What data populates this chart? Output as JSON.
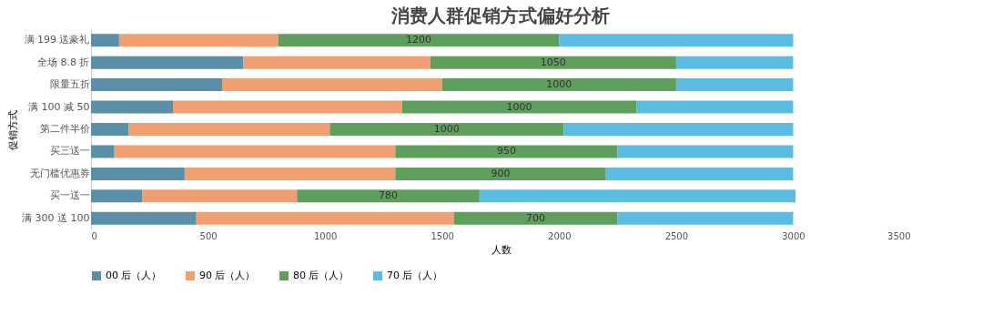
{
  "chart_data": {
    "type": "bar",
    "orientation": "horizontal",
    "stacked": true,
    "title": "消费人群促销方式偏好分析",
    "xlabel": "人数",
    "ylabel": "促销方式",
    "categories": [
      "满 199 送豪礼",
      "全场 8.8 折",
      "限量五折",
      "满 100 减 50",
      "第二件半价",
      "买三送一",
      "无门槛优惠券",
      "买一送一",
      "满 300 送 100"
    ],
    "series": [
      {
        "name": "00 后（人）",
        "color": "#5b8fa8",
        "values": [
          120,
          650,
          560,
          350,
          160,
          100,
          400,
          220,
          450
        ]
      },
      {
        "name": "90 后（人）",
        "color": "#f0a070",
        "values": [
          680,
          800,
          940,
          980,
          860,
          1200,
          900,
          660,
          1100
        ]
      },
      {
        "name": "80 后（人）",
        "color": "#609e5e",
        "values": [
          1200,
          1050,
          1000,
          1000,
          1000,
          950,
          900,
          780,
          700
        ],
        "value_labels": [
          "1200",
          "1050",
          "1000",
          "1000",
          "1000",
          "950",
          "900",
          "780",
          "700"
        ]
      },
      {
        "name": "70 后（人）",
        "color": "#5bbbe0",
        "values": [
          1000,
          500,
          500,
          670,
          980,
          750,
          800,
          1350,
          750
        ]
      }
    ],
    "xlim": [
      0,
      3500
    ],
    "xticks": [
      0,
      500,
      1000,
      1500,
      2000,
      2500,
      3000,
      3500
    ],
    "grid": false,
    "legend": "bottom"
  }
}
